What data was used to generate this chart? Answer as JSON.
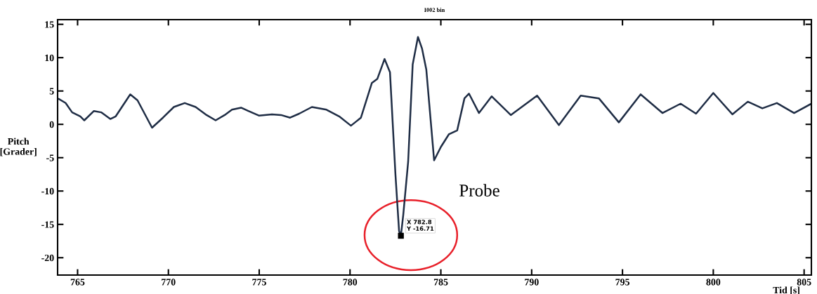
{
  "chart_data": {
    "type": "line",
    "title": "I002 bin",
    "xlabel": "Tid [s]",
    "ylabel": "Pitch\n[Grader]",
    "xlim": [
      763.9,
      805.4
    ],
    "ylim": [
      -22.6,
      15.7
    ],
    "xticks": [
      765,
      770,
      775,
      780,
      785,
      790,
      795,
      800,
      805
    ],
    "yticks": [
      -20,
      -15,
      -10,
      -5,
      0,
      5,
      10,
      15
    ],
    "grid": false,
    "legend": false,
    "marker": "none",
    "line_style": "solid",
    "annotations": [
      {
        "text": "X 782.8\nY -16.71",
        "x": 782.8,
        "y": -16.71
      },
      "Probe"
    ],
    "series": [
      {
        "color": "#1f2d45",
        "x": [
          763.97,
          764.34,
          764.7,
          765.15,
          765.37,
          765.9,
          766.3,
          766.8,
          767.1,
          767.9,
          768.3,
          769.1,
          769.7,
          770.3,
          770.9,
          771.5,
          772.1,
          772.6,
          773.1,
          773.5,
          774.0,
          774.4,
          775.0,
          775.7,
          776.2,
          776.7,
          777.2,
          777.9,
          778.7,
          779.4,
          780.05,
          780.6,
          781.2,
          781.5,
          781.9,
          782.2,
          782.5,
          782.7,
          782.8,
          782.93,
          783.2,
          783.45,
          783.74,
          783.96,
          784.2,
          784.63,
          785.0,
          785.44,
          785.9,
          786.3,
          786.55,
          787.1,
          787.8,
          788.85,
          790.3,
          791.5,
          792.7,
          793.7,
          794.8,
          796.0,
          797.2,
          798.2,
          799.05,
          800.0,
          801.05,
          801.9,
          802.7,
          803.5,
          804.45,
          805.4
        ],
        "values": [
          3.8,
          3.2,
          1.8,
          1.2,
          0.6,
          2.0,
          1.8,
          0.8,
          1.2,
          4.5,
          3.6,
          -0.5,
          1.0,
          2.6,
          3.2,
          2.6,
          1.4,
          0.6,
          1.4,
          2.2,
          2.5,
          2.0,
          1.3,
          1.5,
          1.4,
          1.0,
          1.6,
          2.6,
          2.2,
          1.2,
          -0.2,
          1.0,
          6.2,
          6.8,
          9.8,
          7.8,
          -7.5,
          -16.0,
          -16.71,
          -13.6,
          -5.6,
          9.0,
          13.1,
          11.4,
          8.2,
          -5.4,
          -3.4,
          -1.5,
          -0.9,
          3.9,
          4.6,
          1.7,
          4.2,
          1.4,
          4.3,
          -0.1,
          4.3,
          3.9,
          0.3,
          4.5,
          1.7,
          3.1,
          1.6,
          4.7,
          1.5,
          3.4,
          2.4,
          3.2,
          1.7,
          3.1
        ]
      }
    ]
  }
}
